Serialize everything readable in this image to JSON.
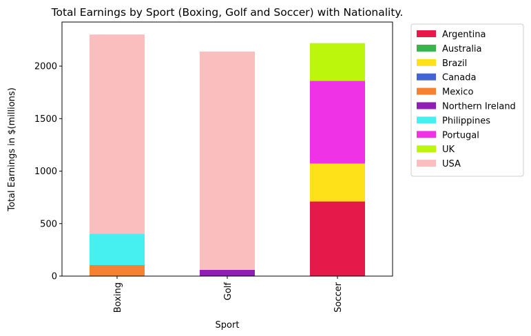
{
  "chart_data": {
    "type": "bar",
    "stacked": true,
    "title": "Total Earnings by Sport (Boxing, Golf and Soccer) with Nationality.",
    "xlabel": "Sport",
    "ylabel": "Total Earnings in $(millions)",
    "categories": [
      "Boxing",
      "Golf",
      "Soccer"
    ],
    "ylim": [
      0,
      2420
    ],
    "yticks": [
      0,
      500,
      1000,
      1500,
      2000
    ],
    "grid": false,
    "legend_position": "outside-right",
    "series": [
      {
        "name": "Argentina",
        "color": "#e6194b",
        "values": [
          0,
          0,
          711
        ]
      },
      {
        "name": "Australia",
        "color": "#3cb44b",
        "values": [
          0,
          0,
          0
        ]
      },
      {
        "name": "Brazil",
        "color": "#ffe119",
        "values": [
          0,
          0,
          361
        ]
      },
      {
        "name": "Canada",
        "color": "#4363d8",
        "values": [
          0,
          0,
          0
        ]
      },
      {
        "name": "Mexico",
        "color": "#f58231",
        "values": [
          105,
          0,
          0
        ]
      },
      {
        "name": "Northern Ireland",
        "color": "#911eb4",
        "values": [
          0,
          60,
          0
        ]
      },
      {
        "name": "Philippines",
        "color": "#46f0f0",
        "values": [
          300,
          0,
          0
        ]
      },
      {
        "name": "Portugal",
        "color": "#f032e6",
        "values": [
          0,
          0,
          787
        ]
      },
      {
        "name": "UK",
        "color": "#bcf60c",
        "values": [
          0,
          0,
          360
        ]
      },
      {
        "name": "USA",
        "color": "#fabebe",
        "values": [
          1896,
          2079,
          0
        ]
      }
    ]
  }
}
